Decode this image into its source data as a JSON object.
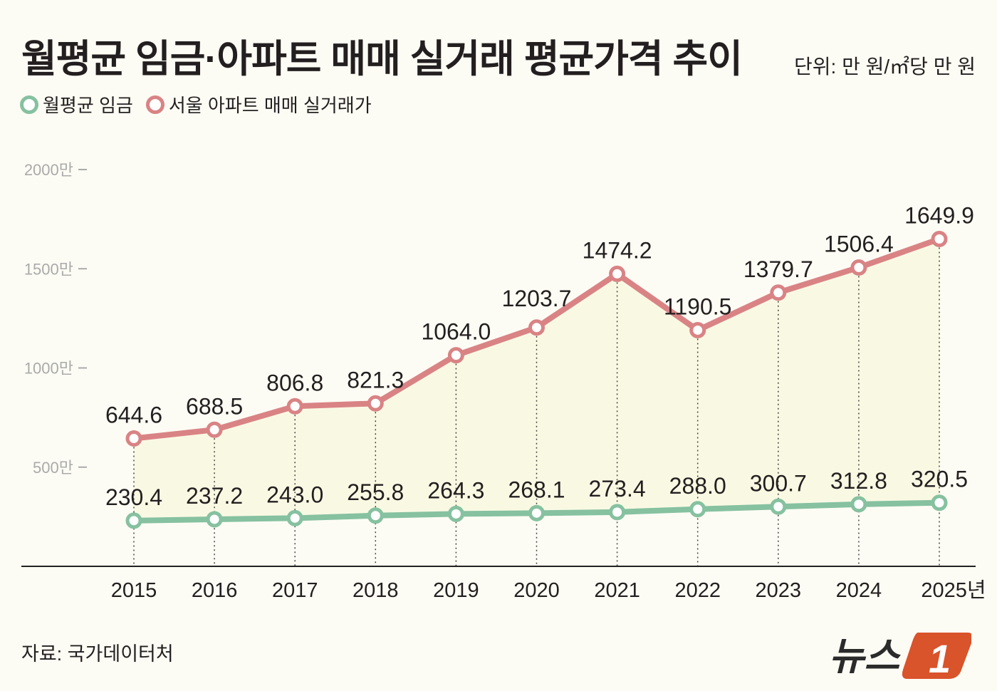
{
  "title": "월평균 임금·아파트 매매 실거래 평균가격 추이",
  "unit": "단위: 만 원/㎡당 만 원",
  "source": "자료: 국가데이터처",
  "logo": "뉴스1",
  "colors": {
    "wage": "#86c1a0",
    "apt": "#d98385",
    "fill": "#f9f9e3",
    "background": "#fdfcf4"
  },
  "chart_data": {
    "type": "line",
    "categories": [
      "2015",
      "2016",
      "2017",
      "2018",
      "2019",
      "2020",
      "2021",
      "2022",
      "2023",
      "2024",
      "2025년"
    ],
    "ylim": [
      0,
      2000
    ],
    "yticks": [
      {
        "value": 500,
        "label": "500만"
      },
      {
        "value": 1000,
        "label": "1000만"
      },
      {
        "value": 1500,
        "label": "1500만"
      },
      {
        "value": 2000,
        "label": "2000만"
      }
    ],
    "legend": "top-left",
    "grid": false,
    "series": [
      {
        "name": "월평균 임금",
        "values": [
          230.4,
          237.2,
          243.0,
          255.8,
          264.3,
          268.1,
          273.4,
          288.0,
          300.7,
          312.8,
          320.5
        ],
        "labels": [
          "230.4",
          "237.2",
          "243.0",
          "255.8",
          "264.3",
          "268.1",
          "273.4",
          "288.0",
          "300.7",
          "312.8",
          "320.5"
        ]
      },
      {
        "name": "서울 아파트 매매 실거래가",
        "values": [
          644.6,
          688.5,
          806.8,
          821.3,
          1064.0,
          1203.7,
          1474.2,
          1190.5,
          1379.7,
          1506.4,
          1649.9
        ],
        "labels": [
          "644.6",
          "688.5",
          "806.8",
          "821.3",
          "1064.0",
          "1203.7",
          "1474.2",
          "1190.5",
          "1379.7",
          "1506.4",
          "1649.9"
        ]
      }
    ]
  }
}
